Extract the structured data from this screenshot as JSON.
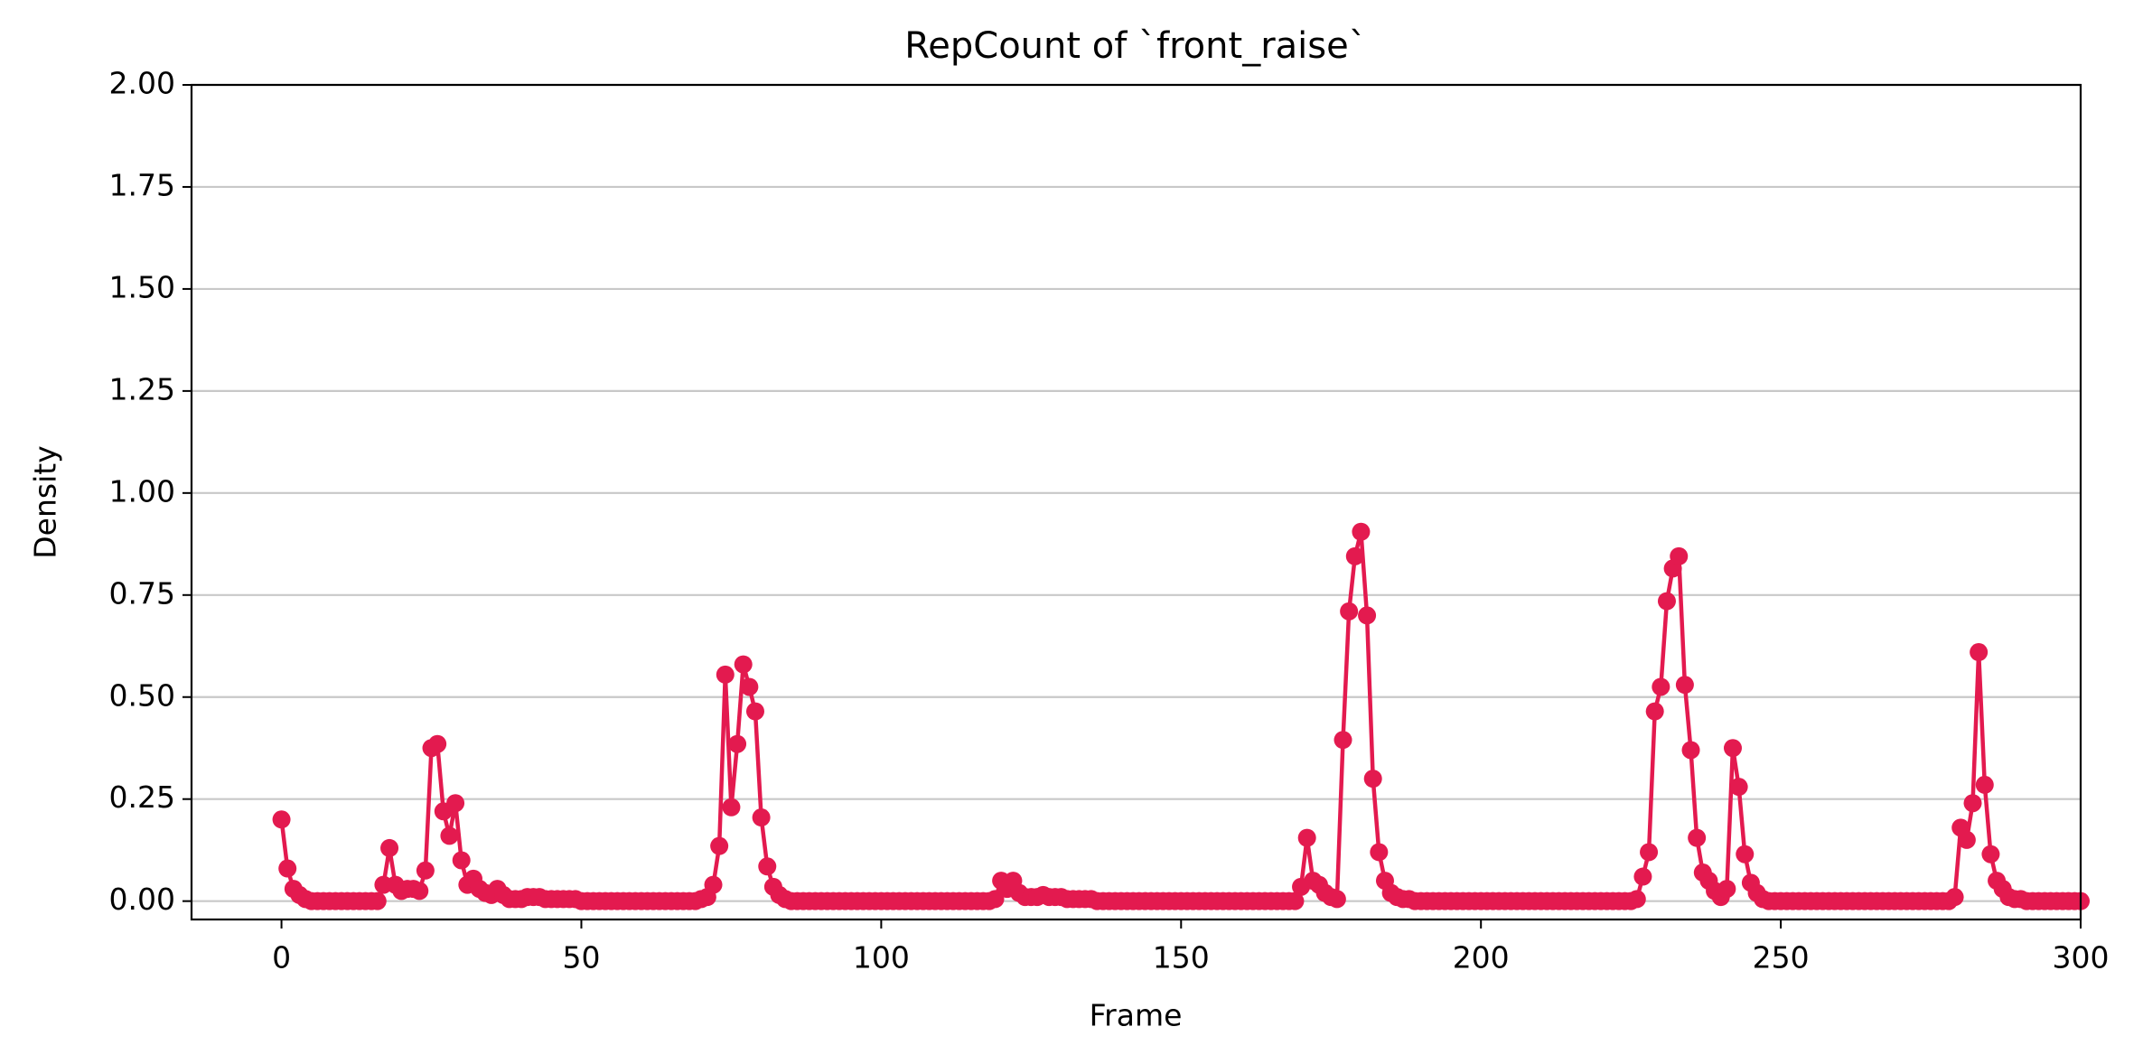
{
  "chart_data": {
    "type": "line",
    "title": "RepCount of `front_raise`",
    "x_label": "Frame",
    "y_label": "Density",
    "x": [
      0,
      1,
      2,
      3,
      4,
      5,
      6,
      7,
      8,
      9,
      10,
      11,
      12,
      13,
      14,
      15,
      16,
      17,
      18,
      19,
      20,
      21,
      22,
      23,
      24,
      25,
      26,
      27,
      28,
      29,
      30,
      31,
      32,
      33,
      34,
      35,
      36,
      37,
      38,
      39,
      40,
      41,
      42,
      43,
      44,
      45,
      46,
      47,
      48,
      49,
      50,
      51,
      52,
      53,
      54,
      55,
      56,
      57,
      58,
      59,
      60,
      61,
      62,
      63,
      64,
      65,
      66,
      67,
      68,
      69,
      70,
      71,
      72,
      73,
      74,
      75,
      76,
      77,
      78,
      79,
      80,
      81,
      82,
      83,
      84,
      85,
      86,
      87,
      88,
      89,
      90,
      91,
      92,
      93,
      94,
      95,
      96,
      97,
      98,
      99,
      100,
      101,
      102,
      103,
      104,
      105,
      106,
      107,
      108,
      109,
      110,
      111,
      112,
      113,
      114,
      115,
      116,
      117,
      118,
      119,
      120,
      121,
      122,
      123,
      124,
      125,
      126,
      127,
      128,
      129,
      130,
      131,
      132,
      133,
      134,
      135,
      136,
      137,
      138,
      139,
      140,
      141,
      142,
      143,
      144,
      145,
      146,
      147,
      148,
      149,
      150,
      151,
      152,
      153,
      154,
      155,
      156,
      157,
      158,
      159,
      160,
      161,
      162,
      163,
      164,
      165,
      166,
      167,
      168,
      169,
      170,
      171,
      172,
      173,
      174,
      175,
      176,
      177,
      178,
      179,
      180,
      181,
      182,
      183,
      184,
      185,
      186,
      187,
      188,
      189,
      190,
      191,
      192,
      193,
      194,
      195,
      196,
      197,
      198,
      199,
      200,
      201,
      202,
      203,
      204,
      205,
      206,
      207,
      208,
      209,
      210,
      211,
      212,
      213,
      214,
      215,
      216,
      217,
      218,
      219,
      220,
      221,
      222,
      223,
      224,
      225,
      226,
      227,
      228,
      229,
      230,
      231,
      232,
      233,
      234,
      235,
      236,
      237,
      238,
      239,
      240,
      241,
      242,
      243,
      244,
      245,
      246,
      247,
      248,
      249,
      250,
      251,
      252,
      253,
      254,
      255,
      256,
      257,
      258,
      259,
      260,
      261,
      262,
      263,
      264,
      265,
      266,
      267,
      268,
      269,
      270,
      271,
      272,
      273,
      274,
      275,
      276,
      277,
      278,
      279,
      280,
      281,
      282,
      283,
      284,
      285,
      286,
      287,
      288,
      289,
      290,
      291,
      292,
      293,
      294,
      295,
      296,
      297,
      298,
      299,
      300
    ],
    "series": [
      {
        "name": "front_raise",
        "color": "#e31a4f",
        "values": [
          0.2,
          0.08,
          0.03,
          0.015,
          0.005,
          0,
          0,
          0,
          0,
          0,
          0,
          0,
          0,
          0,
          0,
          0,
          0,
          0.04,
          0.13,
          0.04,
          0.025,
          0.03,
          0.03,
          0.025,
          0.075,
          0.375,
          0.385,
          0.22,
          0.16,
          0.24,
          0.1,
          0.04,
          0.055,
          0.03,
          0.02,
          0.015,
          0.03,
          0.015,
          0.005,
          0.005,
          0.005,
          0.01,
          0.01,
          0.01,
          0.005,
          0.005,
          0.005,
          0.005,
          0.005,
          0.005,
          0,
          0,
          0,
          0,
          0,
          0,
          0,
          0,
          0,
          0,
          0,
          0,
          0,
          0,
          0,
          0,
          0,
          0,
          0,
          0,
          0.005,
          0.01,
          0.04,
          0.135,
          0.555,
          0.23,
          0.385,
          0.58,
          0.525,
          0.465,
          0.205,
          0.085,
          0.035,
          0.015,
          0.005,
          0,
          0,
          0,
          0,
          0,
          0,
          0,
          0,
          0,
          0,
          0,
          0,
          0,
          0,
          0,
          0,
          0,
          0,
          0,
          0,
          0,
          0,
          0,
          0,
          0,
          0,
          0,
          0,
          0,
          0,
          0,
          0,
          0,
          0,
          0.005,
          0.05,
          0.03,
          0.05,
          0.02,
          0.01,
          0.01,
          0.01,
          0.015,
          0.01,
          0.01,
          0.01,
          0.005,
          0.005,
          0.005,
          0.005,
          0.005,
          0,
          0,
          0,
          0,
          0,
          0,
          0,
          0,
          0,
          0,
          0,
          0,
          0,
          0,
          0,
          0,
          0,
          0,
          0,
          0,
          0,
          0,
          0,
          0,
          0,
          0,
          0,
          0,
          0,
          0,
          0,
          0,
          0,
          0,
          0.035,
          0.155,
          0.05,
          0.04,
          0.02,
          0.01,
          0.005,
          0.395,
          0.71,
          0.845,
          0.905,
          0.7,
          0.3,
          0.12,
          0.05,
          0.02,
          0.01,
          0.005,
          0.005,
          0,
          0,
          0,
          0,
          0,
          0,
          0,
          0,
          0,
          0,
          0,
          0,
          0,
          0,
          0,
          0,
          0,
          0,
          0,
          0,
          0,
          0,
          0,
          0,
          0,
          0,
          0,
          0,
          0,
          0,
          0,
          0,
          0,
          0,
          0,
          0,
          0,
          0.005,
          0.06,
          0.12,
          0.465,
          0.525,
          0.735,
          0.815,
          0.845,
          0.53,
          0.37,
          0.155,
          0.07,
          0.05,
          0.025,
          0.01,
          0.03,
          0.375,
          0.28,
          0.115,
          0.045,
          0.02,
          0.005,
          0,
          0,
          0,
          0,
          0,
          0,
          0,
          0,
          0,
          0,
          0,
          0,
          0,
          0,
          0,
          0,
          0,
          0,
          0,
          0,
          0,
          0,
          0,
          0,
          0,
          0,
          0,
          0,
          0,
          0,
          0,
          0.01,
          0.18,
          0.15,
          0.24,
          0.61,
          0.285,
          0.115,
          0.05,
          0.03,
          0.01,
          0.005,
          0.005,
          0,
          0,
          0,
          0,
          0,
          0,
          0,
          0,
          0,
          0
        ]
      }
    ],
    "xlim": [
      -15,
      300
    ],
    "ylim": [
      -0.045,
      2.0
    ],
    "xticks": [
      0,
      50,
      100,
      150,
      200,
      250,
      300
    ],
    "yticks": [
      {
        "value": 0,
        "label": "0.00"
      },
      {
        "value": 0.25,
        "label": "0.25"
      },
      {
        "value": 0.5,
        "label": "0.50"
      },
      {
        "value": 0.75,
        "label": "0.75"
      },
      {
        "value": 1,
        "label": "1.00"
      },
      {
        "value": 1.25,
        "label": "1.25"
      },
      {
        "value": 1.5,
        "label": "1.50"
      },
      {
        "value": 1.75,
        "label": "1.75"
      },
      {
        "value": 2,
        "label": "2.00"
      }
    ],
    "grid": "y"
  }
}
